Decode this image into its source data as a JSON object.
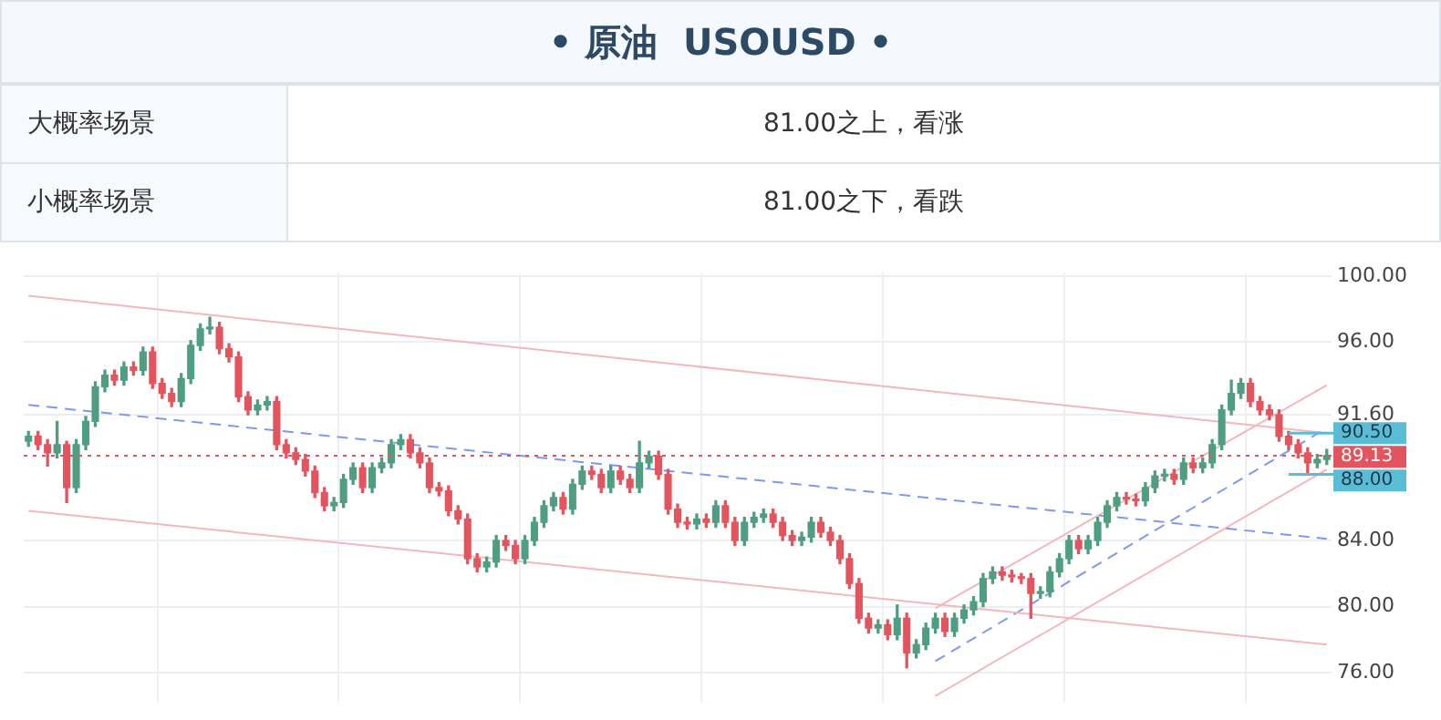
{
  "chart_data": {
    "type": "candlestick",
    "title": "• 原油  USOUSD •",
    "annotations": [
      "大概率场景",
      "81.00之上，看涨",
      "小概率场景",
      "81.00之下，看跌"
    ],
    "categories": [
      null,
      null,
      null,
      null,
      null,
      null,
      null,
      null,
      null,
      null,
      null,
      null,
      null,
      null,
      null,
      null,
      null,
      null,
      null,
      null,
      null,
      null,
      null,
      null,
      null,
      null,
      null,
      null,
      null,
      null,
      null,
      null,
      null,
      null,
      null,
      null,
      null,
      null,
      null,
      null,
      null,
      null,
      null,
      null,
      null,
      null,
      null,
      null,
      null,
      null,
      null,
      null,
      null,
      null,
      null,
      null,
      null,
      null,
      null,
      null,
      null,
      null,
      null,
      null,
      null,
      null,
      null,
      null,
      null,
      null,
      null,
      null,
      null,
      null,
      null,
      null,
      null,
      null,
      null,
      null,
      null,
      null,
      null,
      null,
      null,
      null,
      null,
      null,
      null,
      null,
      null,
      null,
      null,
      null,
      null,
      null,
      null,
      null,
      null,
      null,
      null,
      null,
      null,
      null,
      null,
      null,
      null,
      null,
      null,
      null,
      null,
      null,
      null,
      null,
      null,
      null,
      null,
      null,
      null,
      null,
      null,
      null,
      null,
      null,
      null,
      null,
      null,
      null,
      null,
      null,
      null,
      null,
      null,
      null,
      null,
      null,
      null
    ],
    "ohlc": [
      [
        90.0,
        90.6,
        89.7,
        90.3
      ],
      [
        90.3,
        90.6,
        89.5,
        89.8
      ],
      [
        89.8,
        90.1,
        88.5,
        89.3
      ],
      [
        89.3,
        91.2,
        89.0,
        89.8
      ],
      [
        89.8,
        90.0,
        86.3,
        87.2
      ],
      [
        87.2,
        90.1,
        86.9,
        89.8
      ],
      [
        89.8,
        91.5,
        89.5,
        91.2
      ],
      [
        91.2,
        93.6,
        90.9,
        93.3
      ],
      [
        93.3,
        94.3,
        93.0,
        94.0
      ],
      [
        94.0,
        94.3,
        93.4,
        93.7
      ],
      [
        93.7,
        94.8,
        93.4,
        94.5
      ],
      [
        94.5,
        94.8,
        94.0,
        94.3
      ],
      [
        94.3,
        95.7,
        94.0,
        95.4
      ],
      [
        95.4,
        95.7,
        93.2,
        93.5
      ],
      [
        93.5,
        93.8,
        92.6,
        92.9
      ],
      [
        92.9,
        93.2,
        92.1,
        92.4
      ],
      [
        92.4,
        94.1,
        92.1,
        93.8
      ],
      [
        93.8,
        96.1,
        93.5,
        95.8
      ],
      [
        95.8,
        97.1,
        95.5,
        96.8
      ],
      [
        96.8,
        97.5,
        96.5,
        96.9
      ],
      [
        96.9,
        97.2,
        95.3,
        95.6
      ],
      [
        95.6,
        95.9,
        94.8,
        95.1
      ],
      [
        95.1,
        95.4,
        92.4,
        92.7
      ],
      [
        92.7,
        93.0,
        91.6,
        91.9
      ],
      [
        91.9,
        92.5,
        91.6,
        92.2
      ],
      [
        92.2,
        92.7,
        91.9,
        92.4
      ],
      [
        92.4,
        92.7,
        89.5,
        89.8
      ],
      [
        89.8,
        90.1,
        89.0,
        89.3
      ],
      [
        89.3,
        89.6,
        88.6,
        88.9
      ],
      [
        88.9,
        89.2,
        87.9,
        88.2
      ],
      [
        88.2,
        88.5,
        86.6,
        86.9
      ],
      [
        86.9,
        87.2,
        85.8,
        86.1
      ],
      [
        86.1,
        86.6,
        85.8,
        86.3
      ],
      [
        86.3,
        88.0,
        86.0,
        87.7
      ],
      [
        87.7,
        88.7,
        87.4,
        88.4
      ],
      [
        88.4,
        88.7,
        86.9,
        87.2
      ],
      [
        87.2,
        88.7,
        86.9,
        88.4
      ],
      [
        88.4,
        89.0,
        88.1,
        88.7
      ],
      [
        88.7,
        90.1,
        88.4,
        89.8
      ],
      [
        89.8,
        90.4,
        89.5,
        90.1
      ],
      [
        90.1,
        90.4,
        89.0,
        89.3
      ],
      [
        89.3,
        89.6,
        88.4,
        88.7
      ],
      [
        88.7,
        89.0,
        86.9,
        87.2
      ],
      [
        87.2,
        87.5,
        86.7,
        87.0
      ],
      [
        87.0,
        87.3,
        85.5,
        85.8
      ],
      [
        85.8,
        86.1,
        85.0,
        85.3
      ],
      [
        85.3,
        85.6,
        82.6,
        82.9
      ],
      [
        82.9,
        83.2,
        82.1,
        82.4
      ],
      [
        82.4,
        83.0,
        82.1,
        82.7
      ],
      [
        82.7,
        84.3,
        82.4,
        84.0
      ],
      [
        84.0,
        84.3,
        83.4,
        83.7
      ],
      [
        83.7,
        84.0,
        82.6,
        82.9
      ],
      [
        82.9,
        84.3,
        82.6,
        84.0
      ],
      [
        84.0,
        85.4,
        83.7,
        85.1
      ],
      [
        85.1,
        86.4,
        84.8,
        86.1
      ],
      [
        86.1,
        86.9,
        85.8,
        86.6
      ],
      [
        86.6,
        86.9,
        85.6,
        85.9
      ],
      [
        85.9,
        87.7,
        85.6,
        87.4
      ],
      [
        87.4,
        88.5,
        87.1,
        88.2
      ],
      [
        88.2,
        88.5,
        87.7,
        88.0
      ],
      [
        88.0,
        88.3,
        86.9,
        87.2
      ],
      [
        87.2,
        88.5,
        86.9,
        88.2
      ],
      [
        88.2,
        88.5,
        87.4,
        87.7
      ],
      [
        87.7,
        88.0,
        86.9,
        87.2
      ],
      [
        87.2,
        90.0,
        86.9,
        88.7
      ],
      [
        88.7,
        89.4,
        88.4,
        89.1
      ],
      [
        89.1,
        89.4,
        87.7,
        88.0
      ],
      [
        88.0,
        88.3,
        85.6,
        85.9
      ],
      [
        85.9,
        86.2,
        84.8,
        85.1
      ],
      [
        85.1,
        85.4,
        84.7,
        85.0
      ],
      [
        85.0,
        85.6,
        84.7,
        85.3
      ],
      [
        85.3,
        85.6,
        84.8,
        85.1
      ],
      [
        85.1,
        86.4,
        84.8,
        86.1
      ],
      [
        86.1,
        86.4,
        84.8,
        85.1
      ],
      [
        85.1,
        85.4,
        83.7,
        84.0
      ],
      [
        84.0,
        85.4,
        83.7,
        85.1
      ],
      [
        85.1,
        85.7,
        84.8,
        85.4
      ],
      [
        85.4,
        85.9,
        85.1,
        85.6
      ],
      [
        85.6,
        85.9,
        84.8,
        85.1
      ],
      [
        85.1,
        85.4,
        84.0,
        84.3
      ],
      [
        84.3,
        84.6,
        83.7,
        84.0
      ],
      [
        84.0,
        84.5,
        83.7,
        84.2
      ],
      [
        84.2,
        85.4,
        83.9,
        85.1
      ],
      [
        85.1,
        85.4,
        84.2,
        84.5
      ],
      [
        84.5,
        84.8,
        83.7,
        84.0
      ],
      [
        84.0,
        84.3,
        82.6,
        82.9
      ],
      [
        82.9,
        83.2,
        81.1,
        81.4
      ],
      [
        81.4,
        81.7,
        79.0,
        79.3
      ],
      [
        79.3,
        79.6,
        78.4,
        78.7
      ],
      [
        78.7,
        79.2,
        78.4,
        78.9
      ],
      [
        78.9,
        79.2,
        78.0,
        78.3
      ],
      [
        78.3,
        80.1,
        78.0,
        79.3
      ],
      [
        79.3,
        79.6,
        76.3,
        77.2
      ],
      [
        77.2,
        78.0,
        76.9,
        77.7
      ],
      [
        77.7,
        79.0,
        77.4,
        78.7
      ],
      [
        78.7,
        79.6,
        78.4,
        79.3
      ],
      [
        79.3,
        79.6,
        78.2,
        78.5
      ],
      [
        78.5,
        79.6,
        78.2,
        79.3
      ],
      [
        79.3,
        80.1,
        79.0,
        79.8
      ],
      [
        79.8,
        80.6,
        79.5,
        80.3
      ],
      [
        80.3,
        82.0,
        80.0,
        81.7
      ],
      [
        81.7,
        82.4,
        81.4,
        82.1
      ],
      [
        82.1,
        82.4,
        81.6,
        81.9
      ],
      [
        81.9,
        82.2,
        81.5,
        81.8
      ],
      [
        81.8,
        82.0,
        81.4,
        81.7
      ],
      [
        81.7,
        82.0,
        79.3,
        80.8
      ],
      [
        80.8,
        81.2,
        80.5,
        80.9
      ],
      [
        80.9,
        82.4,
        80.6,
        82.1
      ],
      [
        82.1,
        83.2,
        81.8,
        82.9
      ],
      [
        82.9,
        84.3,
        82.6,
        84.0
      ],
      [
        84.0,
        84.3,
        83.2,
        83.5
      ],
      [
        83.5,
        84.3,
        83.2,
        84.0
      ],
      [
        84.0,
        85.4,
        83.7,
        85.1
      ],
      [
        85.1,
        86.4,
        84.8,
        86.1
      ],
      [
        86.1,
        86.9,
        85.8,
        86.6
      ],
      [
        86.6,
        86.9,
        86.2,
        86.5
      ],
      [
        86.5,
        86.8,
        86.1,
        86.4
      ],
      [
        86.4,
        87.5,
        86.1,
        87.2
      ],
      [
        87.2,
        88.2,
        86.9,
        87.9
      ],
      [
        87.9,
        88.3,
        87.6,
        88.0
      ],
      [
        88.0,
        88.3,
        87.4,
        87.7
      ],
      [
        87.7,
        89.0,
        87.4,
        88.7
      ],
      [
        88.7,
        89.0,
        88.1,
        88.4
      ],
      [
        88.4,
        89.0,
        88.1,
        88.7
      ],
      [
        88.7,
        90.1,
        88.4,
        89.8
      ],
      [
        89.8,
        92.2,
        89.5,
        91.9
      ],
      [
        91.9,
        93.7,
        91.6,
        92.9
      ],
      [
        92.9,
        93.8,
        92.6,
        93.5
      ],
      [
        93.5,
        93.8,
        92.1,
        92.4
      ],
      [
        92.4,
        92.7,
        91.6,
        91.9
      ],
      [
        91.9,
        92.2,
        91.3,
        91.6
      ],
      [
        91.6,
        91.9,
        90.0,
        90.3
      ],
      [
        90.3,
        90.6,
        89.5,
        89.8
      ],
      [
        89.8,
        90.1,
        89.0,
        89.3
      ],
      [
        89.3,
        89.6,
        88.0,
        88.7
      ],
      [
        88.7,
        89.2,
        88.4,
        88.9
      ],
      [
        88.9,
        89.5,
        88.6,
        89.13
      ]
    ],
    "series": [
      {
        "type": "line",
        "color": "#f3b7bd",
        "values": [
          98.8,
          null,
          null,
          null,
          null,
          null,
          null,
          null,
          null,
          null,
          null,
          null,
          null,
          null,
          null,
          null,
          null,
          null,
          null,
          null,
          null,
          null,
          null,
          null,
          null,
          null,
          null,
          null,
          null,
          null,
          null,
          null,
          null,
          null,
          null,
          null,
          null,
          null,
          null,
          null,
          null,
          null,
          null,
          null,
          null,
          null,
          null,
          null,
          null,
          null,
          null,
          null,
          null,
          null,
          null,
          null,
          null,
          null,
          null,
          null,
          null,
          null,
          null,
          null,
          null,
          null,
          null,
          null,
          null,
          null,
          null,
          null,
          null,
          null,
          null,
          null,
          null,
          null,
          null,
          null,
          null,
          null,
          null,
          null,
          null,
          null,
          null,
          null,
          null,
          null,
          null,
          null,
          null,
          null,
          null,
          null,
          null,
          null,
          null,
          null,
          null,
          null,
          null,
          null,
          null,
          null,
          null,
          null,
          null,
          null,
          null,
          null,
          null,
          null,
          null,
          null,
          null,
          null,
          null,
          null,
          null,
          null,
          null,
          null,
          null,
          null,
          null,
          null,
          null,
          null,
          null,
          null,
          null,
          null,
          null,
          null,
          90.5
        ]
      },
      {
        "type": "line",
        "color": "#f3b7bd",
        "values": [
          85.8,
          null,
          null,
          null,
          null,
          null,
          null,
          null,
          null,
          null,
          null,
          null,
          null,
          null,
          null,
          null,
          null,
          null,
          null,
          null,
          null,
          null,
          null,
          null,
          null,
          null,
          null,
          null,
          null,
          null,
          null,
          null,
          null,
          null,
          null,
          null,
          null,
          null,
          null,
          null,
          null,
          null,
          null,
          null,
          null,
          null,
          null,
          null,
          null,
          null,
          null,
          null,
          null,
          null,
          null,
          null,
          null,
          null,
          null,
          null,
          null,
          null,
          null,
          null,
          null,
          null,
          null,
          null,
          null,
          null,
          null,
          null,
          null,
          null,
          null,
          null,
          null,
          null,
          null,
          null,
          null,
          null,
          null,
          null,
          null,
          null,
          null,
          null,
          null,
          null,
          null,
          null,
          null,
          null,
          null,
          null,
          null,
          null,
          null,
          null,
          null,
          null,
          null,
          null,
          null,
          null,
          null,
          null,
          null,
          null,
          null,
          null,
          null,
          null,
          null,
          null,
          null,
          null,
          null,
          null,
          null,
          null,
          null,
          null,
          null,
          null,
          null,
          null,
          null,
          null,
          null,
          null,
          null,
          null,
          null,
          null,
          77.7
        ]
      },
      {
        "type": "line",
        "color": "#7e98ef",
        "line_style": "dashed",
        "values": [
          92.2,
          null,
          null,
          null,
          null,
          null,
          null,
          null,
          null,
          null,
          null,
          null,
          null,
          null,
          null,
          null,
          null,
          null,
          null,
          null,
          null,
          null,
          null,
          null,
          null,
          null,
          null,
          null,
          null,
          null,
          null,
          null,
          null,
          null,
          null,
          null,
          null,
          null,
          null,
          null,
          null,
          null,
          null,
          null,
          null,
          null,
          null,
          null,
          null,
          null,
          null,
          null,
          null,
          null,
          null,
          null,
          null,
          null,
          null,
          null,
          null,
          null,
          null,
          null,
          null,
          null,
          null,
          null,
          null,
          null,
          null,
          null,
          null,
          null,
          null,
          null,
          null,
          null,
          null,
          null,
          null,
          null,
          null,
          null,
          null,
          null,
          null,
          null,
          null,
          null,
          null,
          null,
          null,
          null,
          null,
          null,
          null,
          null,
          null,
          null,
          null,
          null,
          null,
          null,
          null,
          null,
          null,
          null,
          null,
          null,
          null,
          null,
          null,
          null,
          null,
          null,
          null,
          null,
          null,
          null,
          null,
          null,
          null,
          null,
          null,
          null,
          null,
          null,
          null,
          null,
          null,
          null,
          null,
          null,
          null,
          null,
          84.1
        ]
      },
      {
        "type": "line",
        "color": "#f3b7bd",
        "values": [
          null,
          null,
          null,
          null,
          null,
          null,
          null,
          null,
          null,
          null,
          null,
          null,
          null,
          null,
          null,
          null,
          null,
          null,
          null,
          null,
          null,
          null,
          null,
          null,
          null,
          null,
          null,
          null,
          null,
          null,
          null,
          null,
          null,
          null,
          null,
          null,
          null,
          null,
          null,
          null,
          null,
          null,
          null,
          null,
          null,
          null,
          null,
          null,
          null,
          null,
          null,
          null,
          null,
          null,
          null,
          null,
          null,
          null,
          null,
          null,
          null,
          null,
          null,
          null,
          null,
          null,
          null,
          null,
          null,
          null,
          null,
          null,
          null,
          null,
          null,
          null,
          null,
          null,
          null,
          null,
          null,
          null,
          null,
          null,
          null,
          null,
          null,
          null,
          null,
          null,
          null,
          null,
          null,
          null,
          null,
          79.9,
          null,
          null,
          null,
          null,
          null,
          null,
          null,
          null,
          null,
          null,
          null,
          null,
          null,
          null,
          null,
          null,
          null,
          null,
          null,
          null,
          null,
          null,
          null,
          null,
          null,
          null,
          null,
          null,
          null,
          null,
          null,
          null,
          null,
          null,
          null,
          null,
          null,
          null,
          null,
          null,
          93.4
        ]
      },
      {
        "type": "line",
        "color": "#f3b7bd",
        "values": [
          null,
          null,
          null,
          null,
          null,
          null,
          null,
          null,
          null,
          null,
          null,
          null,
          null,
          null,
          null,
          null,
          null,
          null,
          null,
          null,
          null,
          null,
          null,
          null,
          null,
          null,
          null,
          null,
          null,
          null,
          null,
          null,
          null,
          null,
          null,
          null,
          null,
          null,
          null,
          null,
          null,
          null,
          null,
          null,
          null,
          null,
          null,
          null,
          null,
          null,
          null,
          null,
          null,
          null,
          null,
          null,
          null,
          null,
          null,
          null,
          null,
          null,
          null,
          null,
          null,
          null,
          null,
          null,
          null,
          null,
          null,
          null,
          null,
          null,
          null,
          null,
          null,
          null,
          null,
          null,
          null,
          null,
          null,
          null,
          null,
          null,
          null,
          null,
          null,
          null,
          null,
          null,
          null,
          null,
          null,
          74.6,
          null,
          null,
          null,
          null,
          null,
          null,
          null,
          null,
          null,
          null,
          null,
          null,
          null,
          null,
          null,
          null,
          null,
          null,
          null,
          null,
          null,
          null,
          null,
          null,
          null,
          null,
          null,
          null,
          null,
          null,
          null,
          null,
          null,
          null,
          null,
          null,
          null,
          null,
          null,
          null,
          88.3
        ]
      },
      {
        "type": "line",
        "color": "#7e98ef",
        "line_style": "dashed",
        "values": [
          null,
          null,
          null,
          null,
          null,
          null,
          null,
          null,
          null,
          null,
          null,
          null,
          null,
          null,
          null,
          null,
          null,
          null,
          null,
          null,
          null,
          null,
          null,
          null,
          null,
          null,
          null,
          null,
          null,
          null,
          null,
          null,
          null,
          null,
          null,
          null,
          null,
          null,
          null,
          null,
          null,
          null,
          null,
          null,
          null,
          null,
          null,
          null,
          null,
          null,
          null,
          null,
          null,
          null,
          null,
          null,
          null,
          null,
          null,
          null,
          null,
          null,
          null,
          null,
          null,
          null,
          null,
          null,
          null,
          null,
          null,
          null,
          null,
          null,
          null,
          null,
          null,
          null,
          null,
          null,
          null,
          null,
          null,
          null,
          null,
          null,
          null,
          null,
          null,
          null,
          null,
          null,
          null,
          null,
          null,
          76.7,
          null,
          null,
          null,
          null,
          null,
          null,
          null,
          null,
          null,
          null,
          null,
          null,
          null,
          null,
          null,
          null,
          null,
          null,
          null,
          null,
          null,
          null,
          null,
          null,
          null,
          null,
          null,
          null,
          null,
          null,
          null,
          null,
          null,
          null,
          null,
          null,
          null,
          null,
          null,
          null,
          90.8
        ]
      }
    ],
    "ylim": [
      74.2,
      100.2
    ],
    "yticks": [
      {
        "value": 100,
        "label": "100.00"
      },
      {
        "value": 96,
        "label": "96.00"
      },
      {
        "value": 91.6,
        "label": "91.60"
      },
      {
        "value": 84,
        "label": "84.00"
      },
      {
        "value": 80,
        "label": "80.00"
      },
      {
        "value": 76,
        "label": "76.00"
      }
    ],
    "ref_lines": [
      {
        "axis": "y",
        "value": 90.5,
        "label": "90.50",
        "color": "#5bbcd6"
      },
      {
        "axis": "y",
        "value": 88.0,
        "label": "88.00",
        "color": "#5bbcd6"
      },
      {
        "axis": "y",
        "value": 89.13,
        "label": "89.13",
        "color": "#e2555f",
        "line_style": "dotted"
      }
    ],
    "grid": true,
    "legend": false,
    "tick_labels": "y"
  }
}
